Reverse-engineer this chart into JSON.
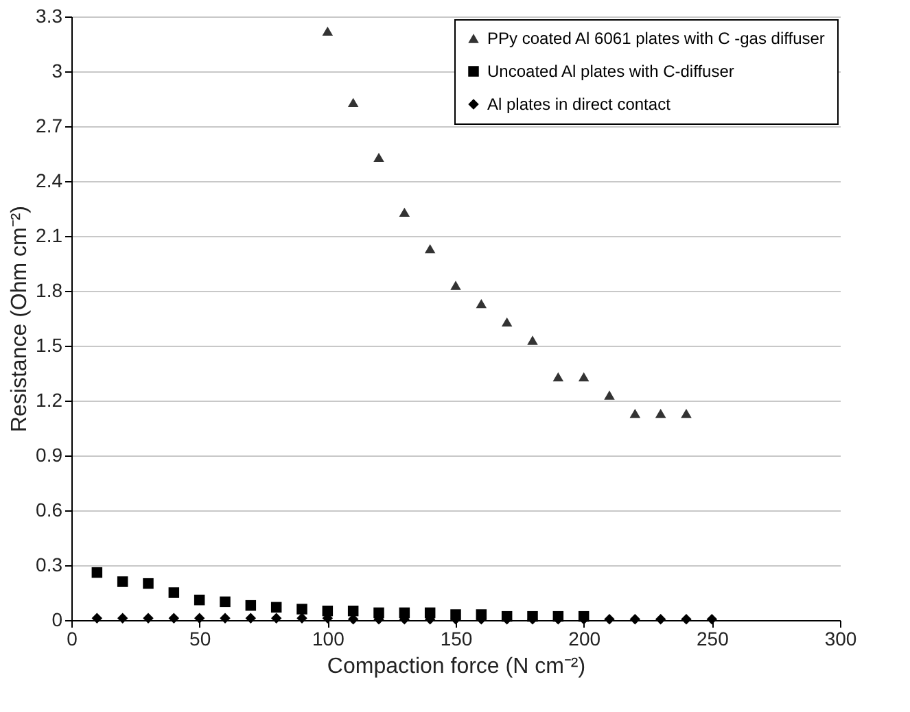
{
  "chart_data": {
    "type": "scatter",
    "xlabel": "Compaction force (N cm⁻²)",
    "ylabel": "Resistance (Ohm cm⁻²)",
    "xlim": [
      0,
      300
    ],
    "xticks": [
      0,
      50,
      100,
      150,
      200,
      250,
      300
    ],
    "ylim": [
      0,
      3.3
    ],
    "yticks": [
      0,
      0.3,
      0.6,
      0.9,
      1.2,
      1.5,
      1.8,
      2.1,
      2.4,
      2.7,
      3,
      3.3
    ],
    "grid": "y",
    "legend": "top right",
    "series": [
      {
        "name": "PPy coated Al 6061 plates with C -gas diffuser",
        "color": "#333333",
        "marker": "triangle",
        "x": [
          100,
          110,
          120,
          130,
          140,
          150,
          160,
          170,
          180,
          190,
          200,
          210,
          220,
          230,
          240
        ],
        "values": [
          3.22,
          2.83,
          2.53,
          2.23,
          2.03,
          1.83,
          1.73,
          1.63,
          1.53,
          1.33,
          1.33,
          1.23,
          1.13,
          1.13,
          1.13
        ]
      },
      {
        "name": "Uncoated Al plates with C-diffuser",
        "color": "#000000",
        "marker": "square",
        "x": [
          10,
          20,
          30,
          40,
          50,
          60,
          70,
          80,
          90,
          100,
          110,
          120,
          130,
          140,
          150,
          160,
          170,
          180,
          190,
          200
        ],
        "values": [
          0.26,
          0.21,
          0.2,
          0.15,
          0.11,
          0.1,
          0.08,
          0.07,
          0.06,
          0.05,
          0.05,
          0.04,
          0.04,
          0.04,
          0.03,
          0.03,
          0.02,
          0.02,
          0.02,
          0.02
        ]
      },
      {
        "name": "Al plates in direct contact",
        "color": "#000000",
        "marker": "diamond",
        "x": [
          10,
          20,
          30,
          40,
          50,
          60,
          70,
          80,
          90,
          100,
          110,
          120,
          130,
          140,
          150,
          160,
          170,
          180,
          190,
          200,
          210,
          220,
          230,
          240,
          250
        ],
        "values": [
          0.01,
          0.01,
          0.01,
          0.01,
          0.01,
          0.01,
          0.01,
          0.01,
          0.01,
          0.01,
          0.005,
          0.005,
          0.005,
          0.005,
          0.005,
          0.005,
          0.005,
          0.005,
          0.005,
          0.005,
          0.005,
          0.005,
          0.005,
          0.005,
          0.005
        ]
      }
    ]
  }
}
